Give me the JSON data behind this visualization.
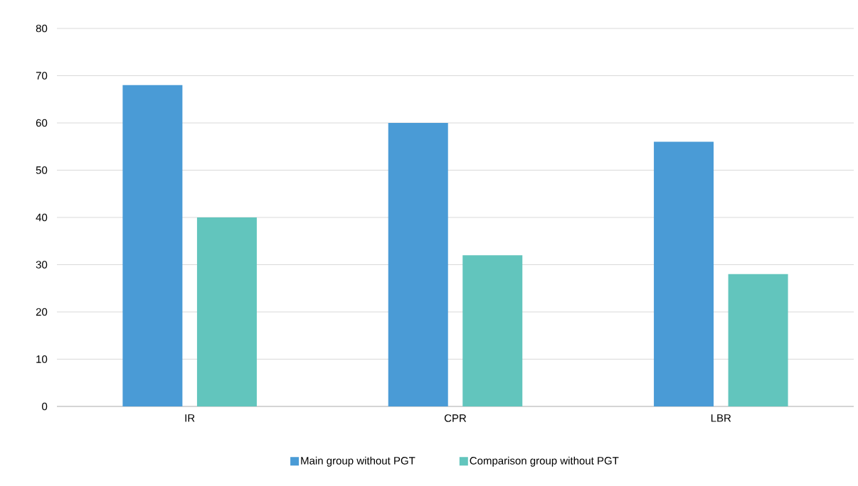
{
  "chart_data": {
    "type": "bar",
    "categories": [
      "IR",
      "CPR",
      "LBR"
    ],
    "series": [
      {
        "name": "Main group without PGT",
        "color": "#4a9bd6",
        "values": [
          68,
          60,
          56
        ]
      },
      {
        "name": "Comparison group without PGT",
        "color": "#62c5bd",
        "values": [
          40,
          32,
          28
        ]
      }
    ],
    "ylim": [
      0,
      80
    ],
    "yticks": [
      0,
      10,
      20,
      30,
      40,
      50,
      60,
      70,
      80
    ],
    "grid": "y",
    "legend": "bottom"
  }
}
